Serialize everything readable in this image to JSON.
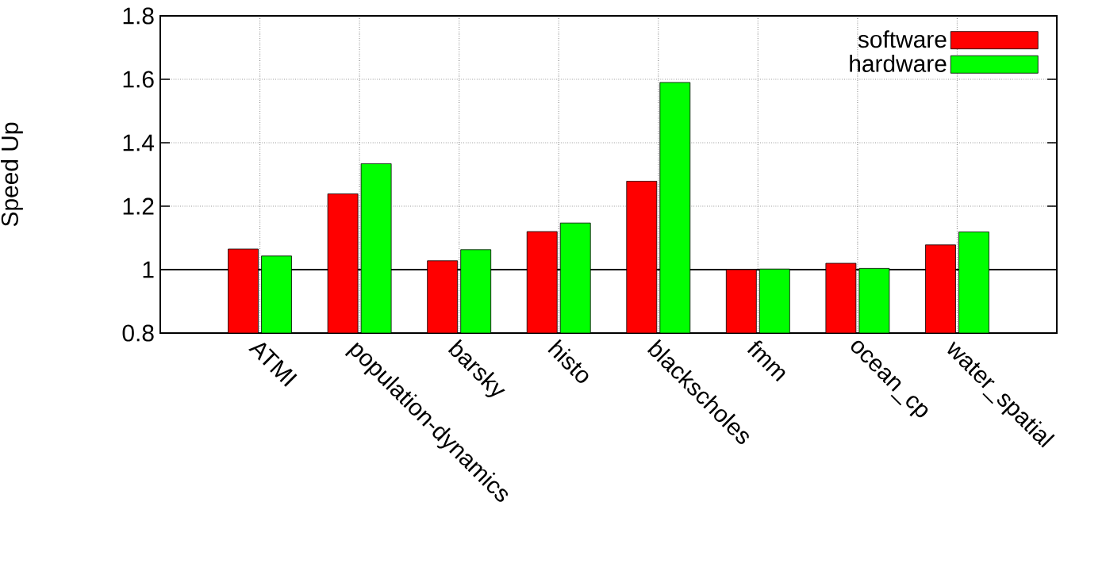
{
  "chart_data": {
    "type": "bar",
    "ylabel": "Speed Up",
    "categories": [
      "ATMI",
      "population-dynamics",
      "barsky",
      "histo",
      "blackscholes",
      "fmm",
      "ocean_cp",
      "water_spatial"
    ],
    "series": [
      {
        "name": "software",
        "color": "#ff0000",
        "values": [
          1.065,
          1.239,
          1.028,
          1.12,
          1.279,
          1.0,
          1.02,
          1.078
        ]
      },
      {
        "name": "hardware",
        "color": "#00ff00",
        "values": [
          1.043,
          1.334,
          1.063,
          1.147,
          1.59,
          1.002,
          1.004,
          1.119
        ]
      }
    ],
    "ylim": [
      0.8,
      1.8
    ],
    "yticks": [
      0.8,
      1,
      1.2,
      1.4,
      1.6,
      1.8
    ],
    "ref_lines": [
      {
        "axis": "y",
        "value": 1,
        "color": "#000000"
      }
    ],
    "grid": true,
    "legend": "top right"
  }
}
